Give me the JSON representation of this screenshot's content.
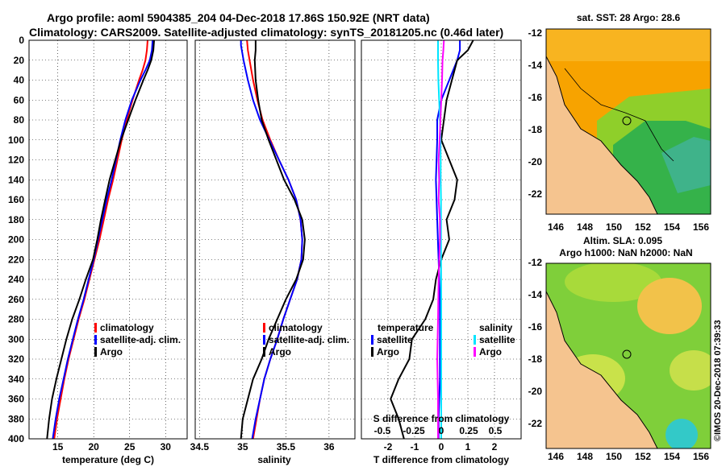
{
  "title": {
    "line1": "Argo profile: aoml 5904385_204 04-Dec-2018 17.86S 150.92E (NRT data)",
    "line2": "Climatology: CARS2009. Satellite-adjusted climatology: synTS_20181205.nc (0.46d later)"
  },
  "colors": {
    "climatology": "#ff0000",
    "satellite": "#0000ff",
    "argo": "#000000",
    "salinity_sat": "#00e5ff",
    "salinity_argo": "#ff00ff",
    "land": "#f5c48f"
  },
  "depth_axis": {
    "ticks": [
      "0",
      "20",
      "40",
      "60",
      "80",
      "100",
      "120",
      "140",
      "160",
      "180",
      "200",
      "220",
      "240",
      "260",
      "280",
      "300",
      "320",
      "340",
      "360",
      "380",
      "400"
    ],
    "range": [
      0,
      400
    ]
  },
  "chart_data": [
    {
      "type": "line",
      "id": "temperature",
      "xlabel": "temperature (deg C)",
      "xlim": [
        11,
        33
      ],
      "xticks": [
        15,
        20,
        25,
        30
      ],
      "xtick_labels": [
        "15",
        "20",
        "25",
        "30"
      ],
      "ylim": [
        0,
        400
      ],
      "legend": [
        "climatology",
        "satellite-adj. clim.",
        "Argo"
      ],
      "series": [
        {
          "name": "climatology",
          "color": "#ff0000",
          "depth": [
            0,
            10,
            20,
            30,
            40,
            60,
            80,
            100,
            120,
            140,
            160,
            180,
            200,
            220,
            240,
            260,
            280,
            300,
            320,
            340,
            360,
            380,
            400
          ],
          "values": [
            27.5,
            27.4,
            27.2,
            26.8,
            26.3,
            25.4,
            24.6,
            23.9,
            23.3,
            22.7,
            22.0,
            21.4,
            20.8,
            20.1,
            19.4,
            18.7,
            17.9,
            17.2,
            16.5,
            15.9,
            15.4,
            14.9,
            14.5
          ]
        },
        {
          "name": "satellite-adj. clim.",
          "color": "#0000ff",
          "depth": [
            0,
            10,
            20,
            30,
            40,
            60,
            80,
            100,
            120,
            140,
            160,
            180,
            200,
            220,
            240,
            260,
            280,
            300,
            320,
            340,
            360,
            380,
            400
          ],
          "values": [
            28.2,
            28.1,
            27.8,
            27.2,
            26.5,
            25.3,
            24.4,
            23.7,
            23.1,
            22.5,
            21.8,
            21.2,
            20.6,
            20.0,
            19.3,
            18.6,
            17.8,
            17.1,
            16.4,
            15.8,
            15.2,
            14.7,
            14.3
          ]
        },
        {
          "name": "Argo",
          "color": "#000000",
          "depth": [
            0,
            10,
            20,
            30,
            40,
            60,
            80,
            100,
            120,
            140,
            160,
            180,
            200,
            220,
            240,
            260,
            280,
            300,
            320,
            340,
            360,
            380,
            400
          ],
          "values": [
            28.4,
            28.3,
            28.0,
            27.5,
            26.9,
            25.8,
            24.8,
            23.8,
            23.0,
            22.2,
            21.6,
            21.0,
            20.5,
            19.9,
            18.9,
            18.0,
            17.0,
            16.2,
            15.5,
            14.8,
            14.2,
            13.8,
            13.5
          ]
        }
      ]
    },
    {
      "type": "line",
      "id": "salinity",
      "xlabel": "salinity",
      "xlim": [
        34.45,
        36.3
      ],
      "xticks": [
        34.5,
        35,
        35.5,
        36
      ],
      "xtick_labels": [
        "34.5",
        "35",
        "35.5",
        "36"
      ],
      "ylim": [
        0,
        400
      ],
      "legend": [
        "climatology",
        "satellite-adj. clim.",
        "Argo"
      ],
      "series": [
        {
          "name": "climatology",
          "color": "#ff0000",
          "depth": [
            0,
            10,
            20,
            40,
            60,
            80,
            100,
            120,
            140,
            160,
            180,
            200,
            220,
            240,
            260,
            280,
            300,
            320,
            340,
            360,
            380,
            400
          ],
          "values": [
            35.05,
            35.06,
            35.08,
            35.12,
            35.17,
            35.23,
            35.32,
            35.42,
            35.53,
            35.62,
            35.67,
            35.69,
            35.68,
            35.63,
            35.55,
            35.47,
            35.4,
            35.32,
            35.25,
            35.2,
            35.16,
            35.12
          ]
        },
        {
          "name": "satellite-adj. clim.",
          "color": "#0000ff",
          "depth": [
            0,
            5,
            10,
            20,
            40,
            60,
            80,
            100,
            120,
            140,
            160,
            180,
            200,
            220,
            240,
            260,
            280,
            300,
            320,
            340,
            360,
            380,
            400
          ],
          "values": [
            34.98,
            34.98,
            34.99,
            35.01,
            35.06,
            35.12,
            35.2,
            35.31,
            35.42,
            35.53,
            35.62,
            35.67,
            35.69,
            35.68,
            35.63,
            35.55,
            35.47,
            35.4,
            35.32,
            35.25,
            35.2,
            35.15,
            35.11
          ]
        },
        {
          "name": "Argo",
          "color": "#000000",
          "depth": [
            0,
            10,
            20,
            40,
            60,
            80,
            100,
            120,
            140,
            160,
            180,
            200,
            220,
            240,
            260,
            280,
            300,
            320,
            340,
            360,
            380,
            400
          ],
          "values": [
            35.15,
            35.15,
            35.14,
            35.15,
            35.18,
            35.22,
            35.3,
            35.39,
            35.48,
            35.6,
            35.69,
            35.72,
            35.7,
            35.62,
            35.5,
            35.4,
            35.3,
            35.22,
            35.12,
            35.06,
            35.0,
            34.98
          ]
        }
      ]
    },
    {
      "type": "line",
      "id": "difference",
      "xlabel": "T difference from climatology",
      "xlabel_top": "S difference from climatology",
      "xlim": [
        -3,
        3
      ],
      "xticks": [
        -2,
        -1,
        0,
        1,
        2
      ],
      "xtick_labels": [
        "-2",
        "-1",
        "0",
        "1",
        "2"
      ],
      "top_ticks": [
        "-0.5",
        "-0.25",
        "0",
        "0.25",
        "0.5"
      ],
      "ylim": [
        0,
        400
      ],
      "legend_temperature_heading": "temperature",
      "legend_salinity_heading": "salinity",
      "legend_temperature": [
        "satellite",
        "Argo"
      ],
      "legend_salinity": [
        "satellite",
        "Argo"
      ],
      "series": [
        {
          "name": "T satellite",
          "color": "#0000ff",
          "depth": [
            0,
            10,
            20,
            40,
            60,
            80,
            100,
            140,
            180,
            220,
            260,
            300,
            340,
            380,
            400
          ],
          "values": [
            0.7,
            0.7,
            0.6,
            0.3,
            0.0,
            -0.15,
            -0.15,
            -0.2,
            -0.15,
            -0.1,
            -0.05,
            -0.05,
            -0.05,
            -0.1,
            -0.1
          ]
        },
        {
          "name": "T Argo",
          "color": "#000000",
          "depth": [
            0,
            10,
            20,
            40,
            60,
            80,
            100,
            120,
            140,
            160,
            180,
            200,
            220,
            240,
            260,
            280,
            300,
            320,
            340,
            360,
            380,
            400
          ],
          "values": [
            1.2,
            1.0,
            0.6,
            0.4,
            0.2,
            0.1,
            0.0,
            0.3,
            0.6,
            0.5,
            0.2,
            0.3,
            0.0,
            -0.2,
            -0.3,
            -0.6,
            -1.1,
            -1.2,
            -1.6,
            -1.9,
            -1.6,
            -1.4
          ]
        },
        {
          "name": "S satellite",
          "color": "#00e5ff",
          "depth": [
            0,
            10,
            20,
            40,
            60,
            80,
            100,
            120,
            140,
            160,
            200,
            260,
            300,
            340,
            380,
            400
          ],
          "values": [
            -0.12,
            -0.12,
            -0.12,
            -0.11,
            -0.08,
            -0.05,
            -0.03,
            -0.02,
            -0.02,
            -0.01,
            -0.01,
            0.0,
            0.0,
            0.0,
            0.0,
            0.0
          ]
        },
        {
          "name": "S Argo",
          "color": "#ff00ff",
          "depth": [
            0,
            10,
            20,
            40,
            60,
            80,
            100,
            120,
            140,
            160,
            180,
            200,
            240,
            280,
            320,
            360,
            400
          ],
          "values": [
            0.1,
            0.08,
            0.05,
            0.03,
            0.0,
            -0.03,
            -0.06,
            -0.1,
            -0.08,
            -0.1,
            -0.05,
            -0.05,
            -0.1,
            -0.12,
            -0.15,
            -0.12,
            -0.12
          ]
        }
      ]
    }
  ],
  "sst_map": {
    "title": "sat. SST: 28 Argo: 28.6",
    "lat_ticks": [
      "-12",
      "-14",
      "-16",
      "-18",
      "-20",
      "-22"
    ],
    "lon_ticks": [
      "146",
      "148",
      "150",
      "152",
      "154",
      "156"
    ]
  },
  "sla_map": {
    "title": "Altim. SLA: 0.095",
    "subtitle": "Argo h1000: NaN h2000: NaN",
    "lat_ticks": [
      "-12",
      "-14",
      "-16",
      "-18",
      "-20",
      "-22"
    ],
    "lon_ticks": [
      "146",
      "148",
      "150",
      "152",
      "154",
      "156"
    ]
  },
  "watermark": "©IMOS 20-Dec-2018 07:39:33"
}
